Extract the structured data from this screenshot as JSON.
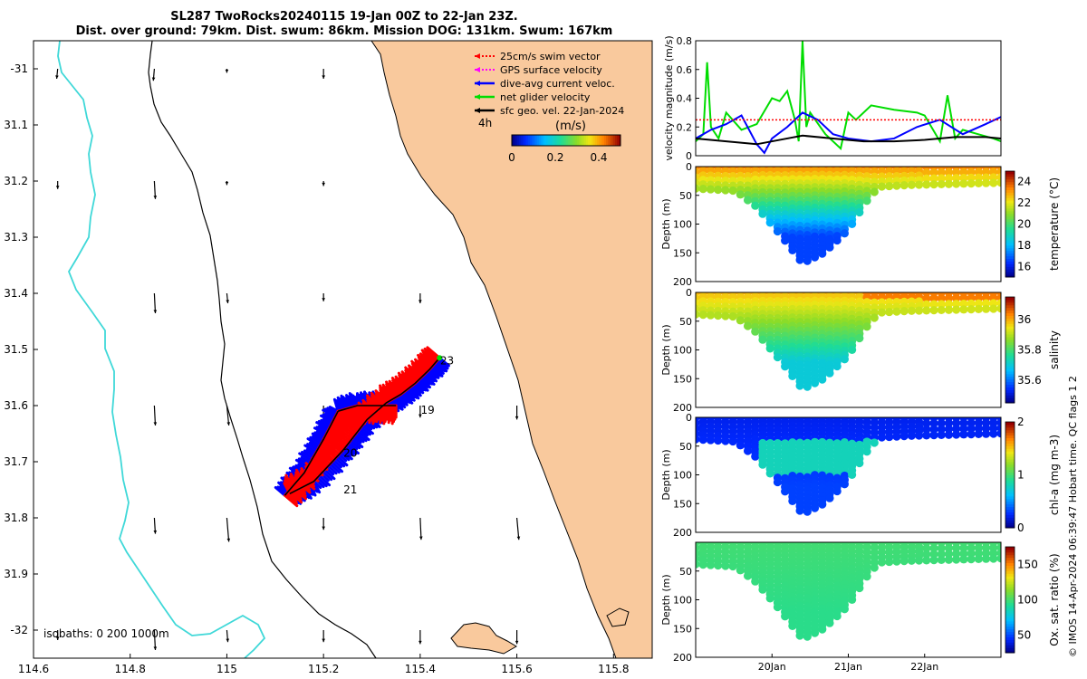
{
  "header": {
    "title_line1": "SL287 TwoRocks20240115 19-Jan 00Z to 22-Jan 23Z.",
    "title_line2": "Dist. over ground: 79km. Dist. swum: 86km. Mission DOG: 131km. Swum: 167km"
  },
  "side_note": "© IMOS 14-Apr-2024 06:39:47 Hobart time. QC flags 1  2",
  "colors": {
    "land": "#f9c99d",
    "ocean": "#ffffff",
    "isobath_0": "#000000",
    "isobath_200": "#000000",
    "isobath_1000": "#3fd8d8",
    "swim_vector": "#ff0000",
    "gps_surface": "#ff00ff",
    "dive_avg": "#0000ff",
    "net_glider": "#00dd00",
    "sfc_geo": "#000000"
  },
  "map": {
    "legend": [
      {
        "label": "25cm/s swim vector",
        "color": "#ff0000",
        "dotted": true
      },
      {
        "label": "GPS surface velocity",
        "color": "#ff00ff",
        "dotted": true
      },
      {
        "label": "dive-avg current veloc.",
        "color": "#0000ff",
        "dotted": false
      },
      {
        "label": "net glider velocity",
        "color": "#00dd00",
        "dotted": false
      },
      {
        "label": "sfc geo. vel. 22-Jan-2024",
        "color": "#000000",
        "dotted": false
      }
    ],
    "legend_side_label": "4h",
    "colorbar": {
      "label": "(m/s)",
      "ticks": [
        "0",
        "0.2",
        "0.4"
      ],
      "min": 0,
      "max": 0.5
    },
    "isobath_note": "isobaths: 0   200  1000m",
    "track_labels": [
      {
        "text": "23",
        "lon": 115.43,
        "lat": -31.52
      },
      {
        "text": "19",
        "lon": 115.39,
        "lat": -31.608
      },
      {
        "text": "20",
        "lon": 115.23,
        "lat": -31.685
      },
      {
        "text": "21",
        "lon": 115.23,
        "lat": -31.75
      }
    ]
  },
  "chart_data": [
    {
      "type": "line",
      "title": "",
      "xlabel": "Longitude",
      "ylabel": "Latitude",
      "xlim": [
        114.6,
        115.88
      ],
      "ylim": [
        -32.05,
        -30.95
      ],
      "x_ticks": [
        "114.6",
        "114.8",
        "115",
        "115.2",
        "115.4",
        "115.6",
        "115.8"
      ],
      "x_tick_values": [
        114.6,
        114.8,
        115.0,
        115.2,
        115.4,
        115.6,
        115.8
      ],
      "y_ticks": [
        "-31",
        "31.1",
        "31.2",
        "31.3",
        "31.4",
        "31.5",
        "31.6",
        "31.7",
        "31.8",
        "31.9",
        "-32"
      ],
      "y_tick_values": [
        -31.0,
        -31.1,
        -31.2,
        -31.3,
        -31.4,
        -31.5,
        -31.6,
        -31.7,
        -31.8,
        -31.9,
        -32.0
      ],
      "series": [
        {
          "name": "net glider track",
          "x": [
            115.13,
            115.18,
            115.24,
            115.29,
            115.33,
            115.36,
            115.39,
            115.42,
            115.44
          ],
          "y": [
            -31.757,
            -31.735,
            -31.68,
            -31.625,
            -31.595,
            -31.58,
            -31.56,
            -31.535,
            -31.515
          ]
        },
        {
          "x": [
            115.35,
            115.31,
            115.27,
            115.23
          ],
          "y": [
            -31.6,
            -31.6,
            -31.6,
            -31.61
          ]
        },
        {
          "x": [
            115.23,
            115.2,
            115.16,
            115.12
          ],
          "y": [
            -31.61,
            -31.66,
            -31.72,
            -31.76
          ]
        }
      ],
      "current_vectors": [
        {
          "lon": 114.65,
          "lat": -31.0,
          "u": -0.01,
          "v": -0.1
        },
        {
          "lon": 114.85,
          "lat": -31.0,
          "u": -0.01,
          "v": -0.12
        },
        {
          "lon": 115.0,
          "lat": -31.0,
          "u": 0.0,
          "v": -0.04
        },
        {
          "lon": 115.2,
          "lat": -31.0,
          "u": 0.0,
          "v": -0.1
        },
        {
          "lon": 114.65,
          "lat": -31.2,
          "u": 0.0,
          "v": -0.08
        },
        {
          "lon": 114.85,
          "lat": -31.2,
          "u": 0.01,
          "v": -0.18
        },
        {
          "lon": 115.0,
          "lat": -31.2,
          "u": 0.0,
          "v": -0.04
        },
        {
          "lon": 115.2,
          "lat": -31.2,
          "u": 0.0,
          "v": -0.05
        },
        {
          "lon": 114.85,
          "lat": -31.4,
          "u": 0.01,
          "v": -0.2
        },
        {
          "lon": 115.0,
          "lat": -31.4,
          "u": 0.01,
          "v": -0.1
        },
        {
          "lon": 115.2,
          "lat": -31.4,
          "u": 0.0,
          "v": -0.08
        },
        {
          "lon": 115.4,
          "lat": -31.4,
          "u": 0.0,
          "v": -0.1
        },
        {
          "lon": 114.85,
          "lat": -31.6,
          "u": 0.01,
          "v": -0.2
        },
        {
          "lon": 115.0,
          "lat": -31.6,
          "u": 0.02,
          "v": -0.2
        },
        {
          "lon": 115.2,
          "lat": -31.6,
          "u": 0.0,
          "v": -0.12
        },
        {
          "lon": 115.4,
          "lat": -31.6,
          "u": 0.0,
          "v": -0.12
        },
        {
          "lon": 115.6,
          "lat": -31.6,
          "u": 0.0,
          "v": -0.14
        },
        {
          "lon": 114.85,
          "lat": -31.8,
          "u": 0.01,
          "v": -0.16
        },
        {
          "lon": 115.0,
          "lat": -31.8,
          "u": 0.02,
          "v": -0.24
        },
        {
          "lon": 115.2,
          "lat": -31.8,
          "u": 0.0,
          "v": -0.12
        },
        {
          "lon": 115.4,
          "lat": -31.8,
          "u": 0.01,
          "v": -0.22
        },
        {
          "lon": 115.6,
          "lat": -31.8,
          "u": 0.02,
          "v": -0.22
        },
        {
          "lon": 114.65,
          "lat": -32.0,
          "u": 0.0,
          "v": -0.1
        },
        {
          "lon": 114.85,
          "lat": -32.0,
          "u": 0.01,
          "v": -0.2
        },
        {
          "lon": 115.0,
          "lat": -32.0,
          "u": 0.01,
          "v": -0.12
        },
        {
          "lon": 115.2,
          "lat": -32.0,
          "u": 0.0,
          "v": -0.12
        },
        {
          "lon": 115.4,
          "lat": -32.0,
          "u": 0.0,
          "v": -0.14
        },
        {
          "lon": 115.6,
          "lat": -32.0,
          "u": 0.0,
          "v": -0.14
        }
      ],
      "grid": false
    },
    {
      "type": "line",
      "title": "",
      "xlabel": "",
      "ylabel": "velocity magnitude (m/s)",
      "ylim": [
        0,
        0.8
      ],
      "y_ticks": [
        "0",
        "0.2",
        "0.4",
        "0.6",
        "0.8"
      ],
      "x_range_days": [
        19.0,
        23.0
      ],
      "series": [
        {
          "name": "net glider velocity",
          "color": "#00dd00",
          "x": [
            19.0,
            19.1,
            19.15,
            19.2,
            19.3,
            19.4,
            19.6,
            19.8,
            20.0,
            20.1,
            20.2,
            20.3,
            20.35,
            20.4,
            20.45,
            20.5,
            20.7,
            20.9,
            21.0,
            21.1,
            21.3,
            21.6,
            21.9,
            22.0,
            22.2,
            22.3,
            22.4,
            22.5,
            22.7,
            22.9,
            23.0
          ],
          "y": [
            0.1,
            0.15,
            0.65,
            0.2,
            0.12,
            0.3,
            0.18,
            0.22,
            0.4,
            0.38,
            0.45,
            0.25,
            0.1,
            0.8,
            0.2,
            0.3,
            0.15,
            0.05,
            0.3,
            0.25,
            0.35,
            0.32,
            0.3,
            0.28,
            0.1,
            0.42,
            0.12,
            0.18,
            0.15,
            0.12,
            0.1
          ]
        },
        {
          "name": "dive-avg current veloc.",
          "color": "#0000ff",
          "x": [
            19.0,
            19.2,
            19.4,
            19.6,
            19.8,
            19.9,
            20.0,
            20.2,
            20.4,
            20.6,
            20.8,
            21.0,
            21.3,
            21.6,
            21.9,
            22.2,
            22.5,
            22.8,
            23.0
          ],
          "y": [
            0.12,
            0.18,
            0.22,
            0.28,
            0.08,
            0.02,
            0.12,
            0.2,
            0.3,
            0.25,
            0.15,
            0.12,
            0.1,
            0.12,
            0.2,
            0.25,
            0.15,
            0.22,
            0.27
          ]
        },
        {
          "name": "swim vector",
          "color": "#ff0000",
          "x": [
            19.0,
            19.5,
            20.0,
            20.5,
            21.0,
            21.5,
            22.0,
            22.5,
            23.0
          ],
          "y": [
            0.25,
            0.25,
            0.25,
            0.25,
            0.25,
            0.25,
            0.25,
            0.25,
            0.25
          ]
        },
        {
          "name": "sfc geo. vel.",
          "color": "#000000",
          "x": [
            19.0,
            19.4,
            19.8,
            20.2,
            20.4,
            20.8,
            21.2,
            21.6,
            22.0,
            22.4,
            22.8,
            23.0
          ],
          "y": [
            0.12,
            0.1,
            0.08,
            0.12,
            0.14,
            0.12,
            0.1,
            0.1,
            0.11,
            0.13,
            0.13,
            0.12
          ]
        }
      ],
      "grid": false
    },
    {
      "type": "heatmap",
      "ylabel": "Depth (m)",
      "ylim": [
        200,
        0
      ],
      "y_ticks": [
        "0",
        "50",
        "100",
        "150",
        "200"
      ],
      "colorbar_label": "temperature (°C)",
      "colorbar_ticks": [
        "24",
        "22",
        "20",
        "18",
        "16"
      ],
      "colorbar_range": [
        15,
        25
      ],
      "surface_value": 23.5,
      "deep_value": 16.5,
      "colormap": "parula_jet"
    },
    {
      "type": "heatmap",
      "ylabel": "Depth (m)",
      "ylim": [
        200,
        0
      ],
      "y_ticks": [
        "0",
        "50",
        "100",
        "150",
        "200"
      ],
      "colorbar_label": "salinity",
      "colorbar_ticks": [
        "36",
        "35.8",
        "35.6"
      ],
      "colorbar_range": [
        35.45,
        36.15
      ],
      "surface_value": 36.0,
      "deep_value": 35.7,
      "colormap": "parula_jet"
    },
    {
      "type": "heatmap",
      "ylabel": "Depth (m)",
      "ylim": [
        200,
        0
      ],
      "y_ticks": [
        "0",
        "50",
        "100",
        "150",
        "200"
      ],
      "colorbar_label": "chl-a (mg m-3)",
      "colorbar_ticks": [
        "2",
        "1",
        "0"
      ],
      "colorbar_range": [
        0,
        2
      ],
      "surface_value": 0.2,
      "deep_value": 0.3,
      "colormap": "parula_jet"
    },
    {
      "type": "heatmap",
      "ylabel": "Depth (m)",
      "ylim": [
        200,
        0
      ],
      "y_ticks": [
        "50",
        "100",
        "150",
        "200"
      ],
      "colorbar_label": "Ox. sat. ratio (%)",
      "colorbar_ticks": [
        "150",
        "100",
        "50"
      ],
      "colorbar_range": [
        25,
        175
      ],
      "surface_value": 100,
      "deep_value": 95,
      "colormap": "parula_jet",
      "x_ticks": [
        "20Jan",
        "21Jan",
        "22Jan"
      ],
      "x_tick_days": [
        20.0,
        21.0,
        22.0
      ],
      "x_range_days": [
        19.0,
        23.0
      ]
    }
  ]
}
